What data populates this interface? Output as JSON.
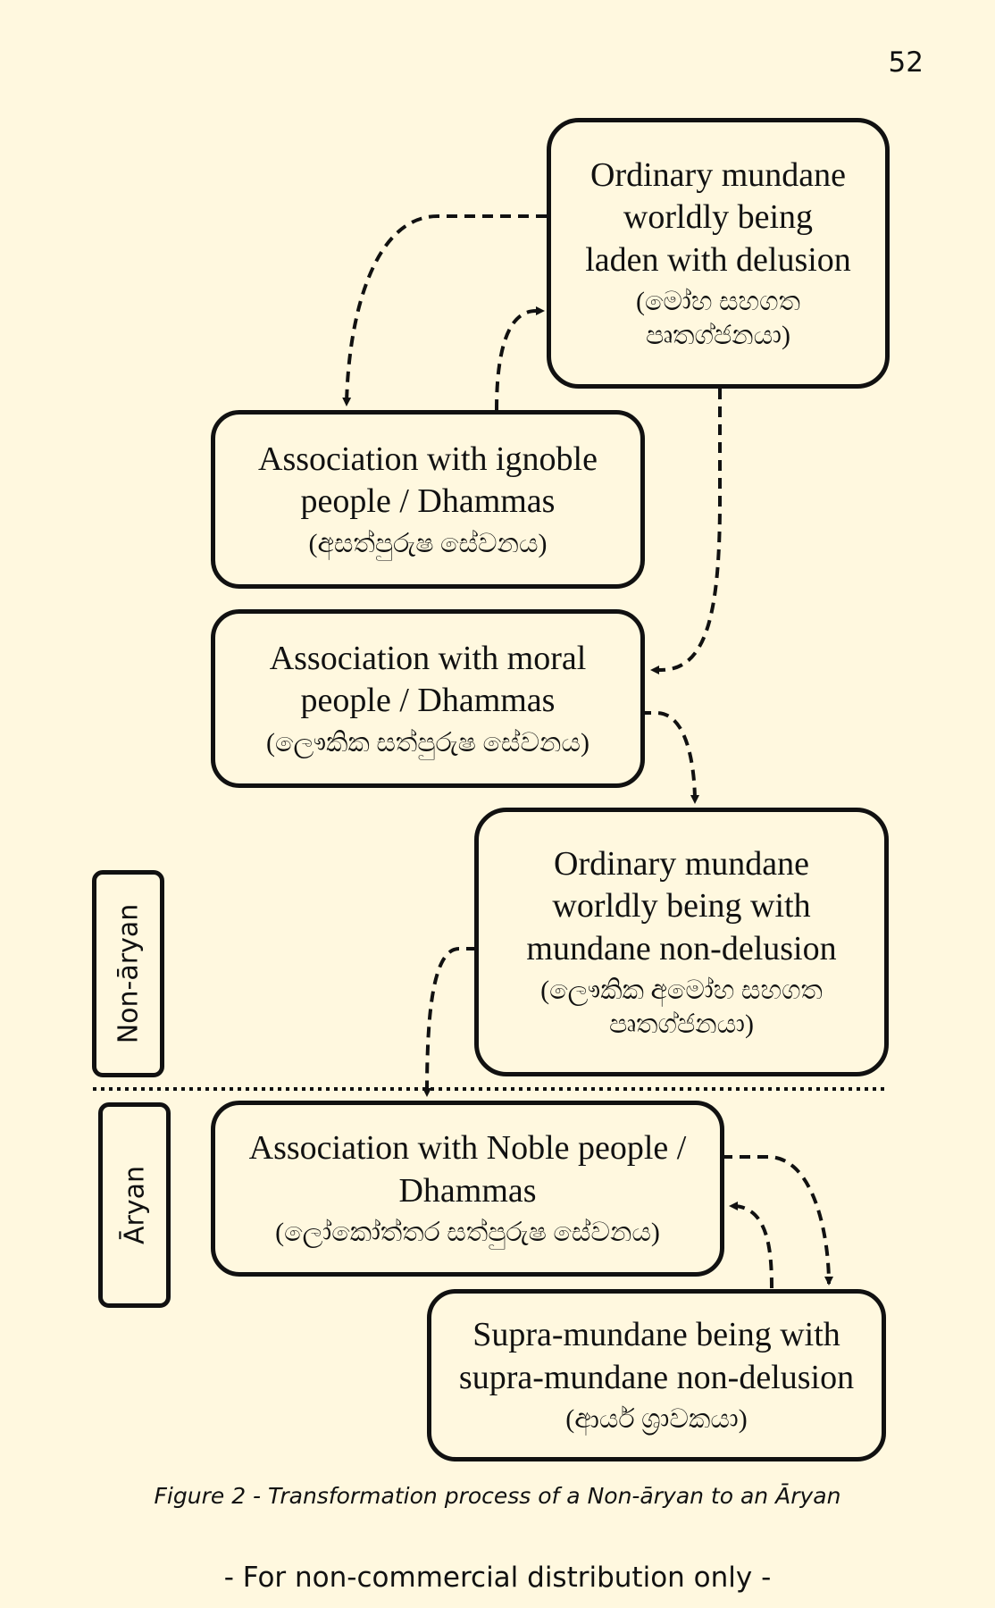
{
  "page_number": "52",
  "nodes": {
    "ordinary_deluded": {
      "english": "Ordinary mundane\nworldly being\nladen with delusion",
      "sinhala": "(මෝහ සහගත\nපෘතග්ජනයා)"
    },
    "ignoble_association": {
      "english": "Association with ignoble\npeople / Dhammas",
      "sinhala": "(අසත්පුරුෂ සේවනය)"
    },
    "moral_association": {
      "english": "Association with moral\npeople / Dhammas",
      "sinhala": "(ලෞකික සත්පුරුෂ සේවනය)"
    },
    "ordinary_non_deluded": {
      "english": "Ordinary mundane\nworldly being with\nmundane non-delusion",
      "sinhala": "(ලෞකික අමෝහ සහගත\nපෘතග්ජනයා)"
    },
    "noble_association": {
      "english": "Association with Noble people /\nDhammas",
      "sinhala": "(ලෝකෝත්තර සත්පුරුෂ සේවනය)"
    },
    "supramundane_being": {
      "english": "Supra-mundane being with\nsupra-mundane non-delusion",
      "sinhala": "(ආර්ය ශ්‍රාවකයා)"
    }
  },
  "side_labels": {
    "non_aryan": "Non-āryan",
    "aryan": "Āryan"
  },
  "caption": "Figure 2 - Transformation process of a Non-āryan to an Āryan",
  "footer": "- For non-commercial distribution only -"
}
